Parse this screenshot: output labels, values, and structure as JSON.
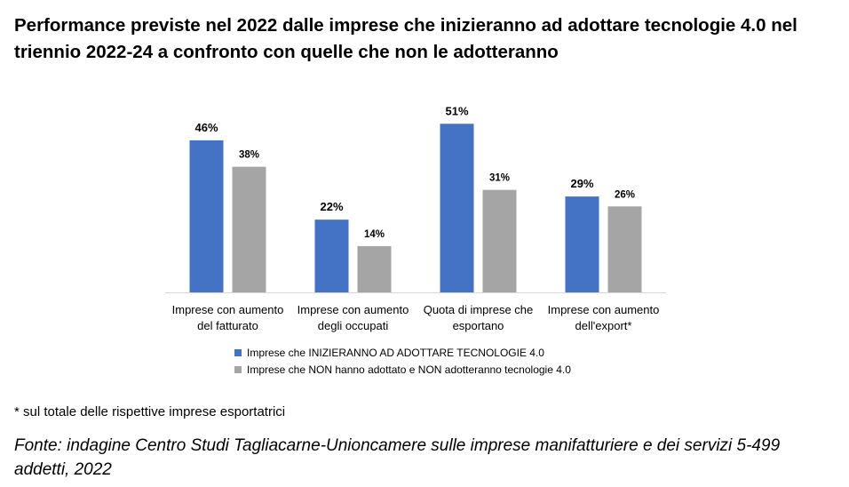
{
  "title": "Performance previste nel 2022 dalle imprese che inizieranno ad adottare tecnologie 4.0 nel triennio 2022-24 a confronto con quelle che non le adotteranno",
  "note": "* sul totale delle rispettive imprese esportatrici",
  "source": "Fonte: indagine Centro Studi Tagliacarne-Unioncamere sulle imprese manifatturiere e dei servizi 5-499 addetti, 2022",
  "chart_data": {
    "type": "bar",
    "categories": [
      [
        "Imprese con aumento",
        "del fatturato"
      ],
      [
        "Imprese con aumento",
        "degli occupati"
      ],
      [
        "Quota di imprese che",
        "esportano"
      ],
      [
        "Imprese con aumento",
        "dell'export*"
      ]
    ],
    "series": [
      {
        "name": "Imprese che INIZIERANNO AD ADOTTARE TECNOLOGIE 4.0",
        "values": [
          46,
          22,
          51,
          29
        ],
        "labels": [
          "46%",
          "22%",
          "51%",
          "29%"
        ],
        "color": "#4472C4"
      },
      {
        "name": "Imprese che NON hanno adottato e NON adotteranno tecnologie 4.0",
        "values": [
          38,
          14,
          31,
          26
        ],
        "labels": [
          "38%",
          "14%",
          "31%",
          "26%"
        ],
        "color": "#A5A5A5"
      }
    ],
    "ylim": [
      0,
      55
    ],
    "grid": false,
    "legend": "bottom",
    "axis_color": "#D9D9D9"
  }
}
